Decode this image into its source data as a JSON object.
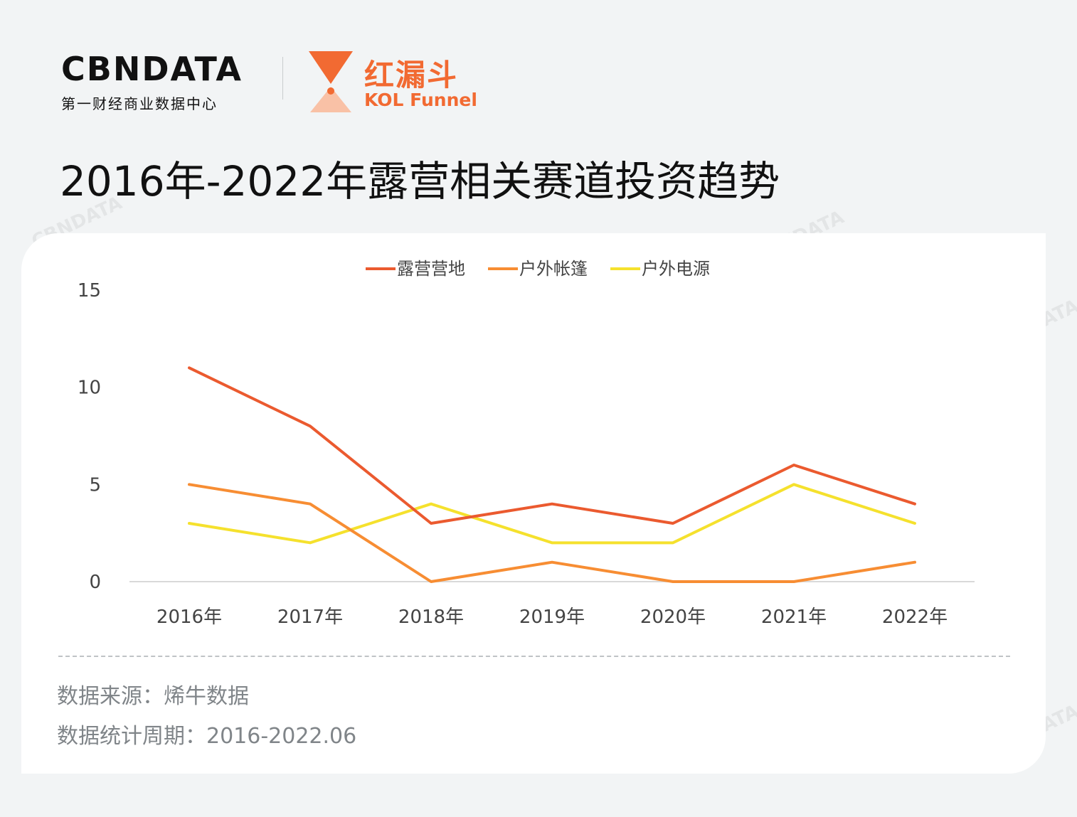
{
  "brand": {
    "cbn_name": "CBNDATA",
    "cbn_tagline": "第一财经商业数据中心",
    "kol_name_cn": "红漏斗",
    "kol_name_en": "KOL Funnel",
    "accent_color": "#f26a32"
  },
  "page_title": "2016年-2022年露营相关赛道投资趋势",
  "chart_data": {
    "type": "line",
    "categories": [
      "2016年",
      "2017年",
      "2018年",
      "2019年",
      "2020年",
      "2021年",
      "2022年"
    ],
    "series": [
      {
        "name": "露营营地",
        "values": [
          11,
          8,
          3,
          4,
          3,
          6,
          4
        ],
        "color": "#eb5a2f"
      },
      {
        "name": "户外帐篷",
        "values": [
          5,
          4,
          0,
          1,
          0,
          0,
          1
        ],
        "color": "#f78d33"
      },
      {
        "name": "户外电源",
        "values": [
          3,
          2,
          4,
          2,
          2,
          5,
          3
        ],
        "color": "#f5e12d"
      }
    ],
    "yticks": [
      "0",
      "5",
      "10",
      "15"
    ],
    "ylim": [
      0,
      15
    ],
    "legend_position": "top-center",
    "grid": false
  },
  "notes": {
    "source": "数据来源：烯牛数据",
    "period": "数据统计周期：2016-2022.06"
  }
}
